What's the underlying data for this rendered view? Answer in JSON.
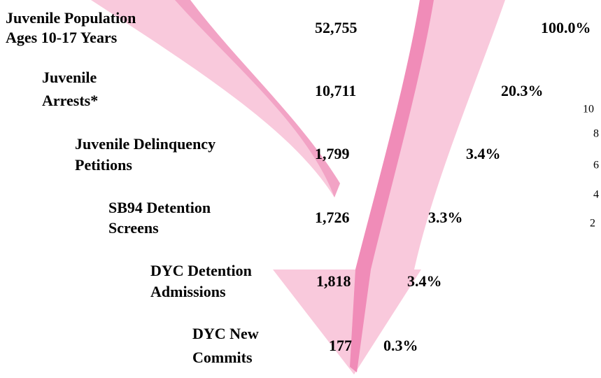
{
  "stages": [
    {
      "label": [
        "Juvenile Population",
        "Ages 10-17 Years"
      ],
      "count": "52,755",
      "percent": "100.0%"
    },
    {
      "label": [
        "Juvenile",
        "Arrests*"
      ],
      "count": "10,711",
      "percent": "20.3%"
    },
    {
      "label": [
        "Juvenile Delinquency",
        "Petitions"
      ],
      "count": "1,799",
      "percent": "3.4%"
    },
    {
      "label": [
        "SB94 Detention",
        "Screens"
      ],
      "count": "1,726",
      "percent": "3.3%"
    },
    {
      "label": [
        "DYC Detention",
        "Admissions"
      ],
      "count": "1,818",
      "percent": "3.4%"
    },
    {
      "label": [
        "DYC New",
        "Commits"
      ],
      "count": "177",
      "percent": "0.3%"
    }
  ],
  "side_labels": [
    "10",
    "8",
    "6",
    "4",
    "2"
  ]
}
